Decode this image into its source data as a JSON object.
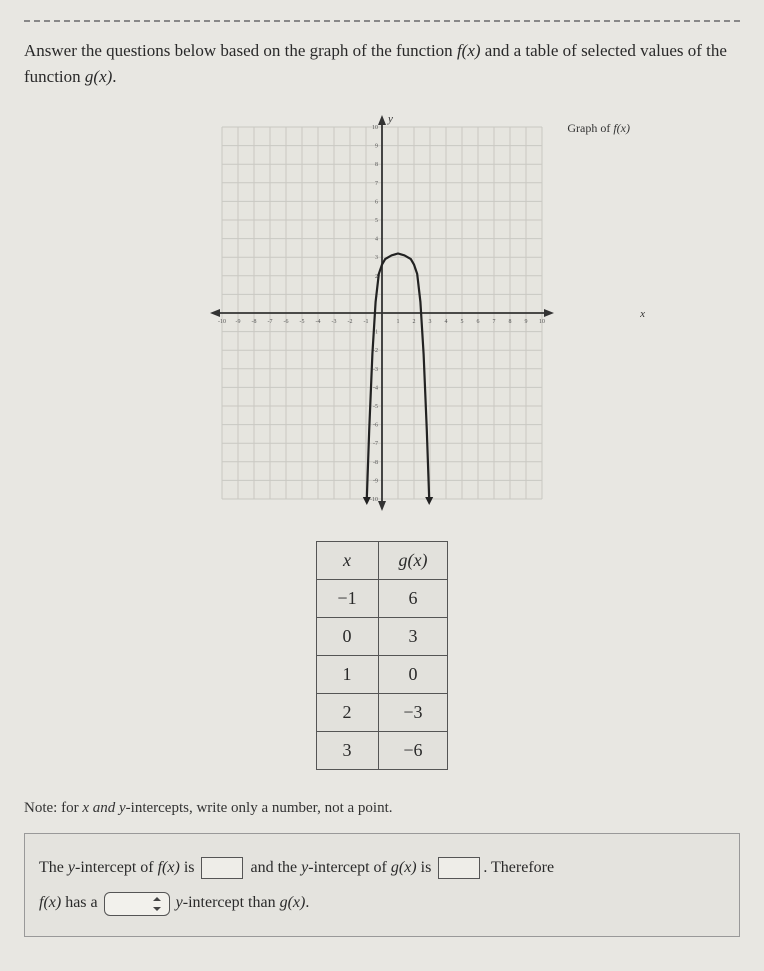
{
  "prompt": {
    "line1_pre": "Answer the questions below based on the graph of the function ",
    "fn_f": "f(x)",
    "line1_mid": " and a table of selected values of the function ",
    "fn_g": "g(x)",
    "line1_end": "."
  },
  "chart": {
    "title": "Graph of f(x)",
    "y_axis_label": "y",
    "x_axis_label": "x",
    "xlim": [
      -10,
      10
    ],
    "ylim": [
      -10,
      10
    ],
    "xtick_step": 1,
    "ytick_step": 1,
    "grid_color": "#c9c8c2",
    "axis_color": "#333333",
    "curve_color": "#222222",
    "background_color": "#e6e5df",
    "curve_points": [
      [
        -0.95,
        -10
      ],
      [
        -0.8,
        -6.3
      ],
      [
        -0.6,
        -2.2
      ],
      [
        -0.4,
        0.6
      ],
      [
        -0.2,
        2.1
      ],
      [
        0,
        2.6
      ],
      [
        0.2,
        2.9
      ],
      [
        0.4,
        3.0
      ],
      [
        0.6,
        3.1
      ],
      [
        0.8,
        3.15
      ],
      [
        1.0,
        3.2
      ],
      [
        1.2,
        3.15
      ],
      [
        1.4,
        3.1
      ],
      [
        1.6,
        3.0
      ],
      [
        1.8,
        2.9
      ],
      [
        2.0,
        2.6
      ],
      [
        2.2,
        2.1
      ],
      [
        2.4,
        0.6
      ],
      [
        2.6,
        -2.2
      ],
      [
        2.8,
        -6.3
      ],
      [
        2.95,
        -10
      ]
    ],
    "arrow_l": [
      -0.95,
      -10
    ],
    "arrow_r": [
      2.95,
      -10
    ]
  },
  "table": {
    "header_x": "x",
    "header_gx": "g(x)",
    "rows": [
      {
        "x": "−1",
        "g": "6"
      },
      {
        "x": "0",
        "g": "3"
      },
      {
        "x": "1",
        "g": "0"
      },
      {
        "x": "2",
        "g": "−3"
      },
      {
        "x": "3",
        "g": "−6"
      }
    ]
  },
  "note": {
    "pre": "Note: for ",
    "vars": "x and y",
    "post": "-intercepts, write only a number, not a point."
  },
  "answer": {
    "s1_pre": "The ",
    "s1_yint": "y",
    "s1_mid1": "-intercept of ",
    "s1_f": "f(x)",
    "s1_mid2": " is ",
    "s1_mid3": " and the ",
    "s1_mid4": "-intercept of ",
    "s1_g": "g(x)",
    "s1_mid5": " is ",
    "s1_end": ". Therefore",
    "s2_f": "f(x)",
    "s2_mid1": " has a ",
    "s2_mid2": "y",
    "s2_mid3": "-intercept than ",
    "s2_g": "g(x)",
    "s2_end": "."
  }
}
